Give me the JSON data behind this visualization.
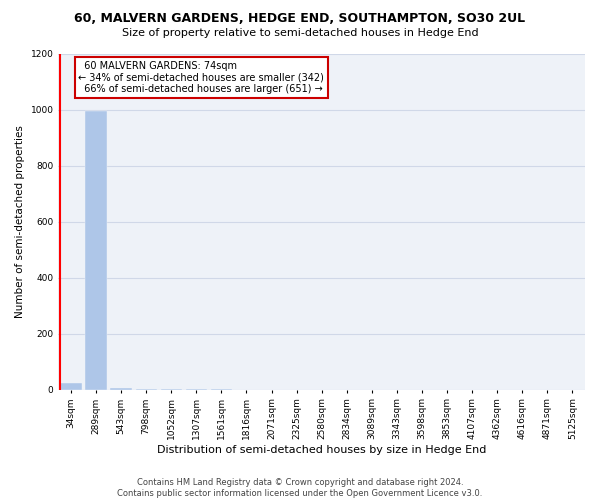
{
  "title": "60, MALVERN GARDENS, HEDGE END, SOUTHAMPTON, SO30 2UL",
  "subtitle": "Size of property relative to semi-detached houses in Hedge End",
  "xlabel": "Distribution of semi-detached houses by size in Hedge End",
  "ylabel": "Number of semi-detached properties",
  "footer": "Contains HM Land Registry data © Crown copyright and database right 2024.\nContains public sector information licensed under the Open Government Licence v3.0.",
  "bar_labels": [
    "34sqm",
    "289sqm",
    "543sqm",
    "798sqm",
    "1052sqm",
    "1307sqm",
    "1561sqm",
    "1816sqm",
    "2071sqm",
    "2325sqm",
    "2580sqm",
    "2834sqm",
    "3089sqm",
    "3343sqm",
    "3598sqm",
    "3853sqm",
    "4107sqm",
    "4362sqm",
    "4616sqm",
    "4871sqm",
    "5125sqm"
  ],
  "bar_values": [
    25,
    993,
    5,
    2,
    1,
    1,
    1,
    0,
    0,
    0,
    0,
    0,
    0,
    0,
    0,
    0,
    0,
    0,
    0,
    0,
    0
  ],
  "bar_color": "#aec6e8",
  "property_sqm": 74,
  "property_label": "60 MALVERN GARDENS: 74sqm",
  "smaller_pct": 34,
  "smaller_count": 342,
  "larger_pct": 66,
  "larger_count": 651,
  "ylim": [
    0,
    1200
  ],
  "yticks": [
    0,
    200,
    400,
    600,
    800,
    1000,
    1200
  ],
  "annotation_box_color": "#cc0000",
  "bg_color": "#eef2f8",
  "grid_color": "#d0d8e8",
  "title_fontsize": 9,
  "subtitle_fontsize": 8,
  "ylabel_fontsize": 7.5,
  "xlabel_fontsize": 8,
  "tick_fontsize": 6.5,
  "footer_fontsize": 6
}
